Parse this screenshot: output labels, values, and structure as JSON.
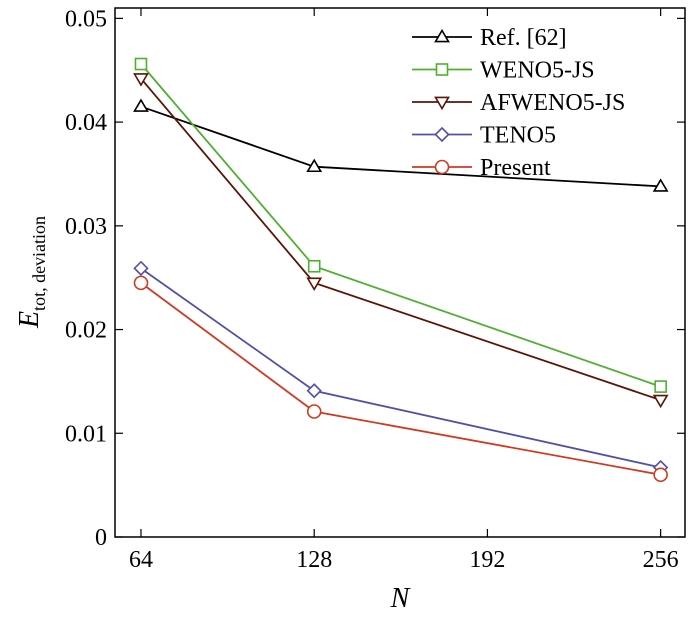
{
  "chart_data": {
    "type": "line",
    "xlabel": "N",
    "ylabel_main": "E",
    "ylabel_sub": "tot, deviation",
    "xlim": [
      54.4,
      265
    ],
    "ylim": [
      0,
      0.051
    ],
    "xticks": [
      64,
      128,
      192,
      256
    ],
    "xtick_labels": [
      "64",
      "128",
      "192",
      "256"
    ],
    "yticks": [
      0,
      0.01,
      0.02,
      0.03,
      0.04,
      0.05
    ],
    "ytick_labels": [
      "0",
      "0.01",
      "0.02",
      "0.03",
      "0.04",
      "0.05"
    ],
    "grid": false,
    "legend_position": "top-right",
    "x": [
      64,
      128,
      256
    ],
    "series": [
      {
        "name": "Ref. [62]",
        "color": "#000000",
        "marker": "triangle-up",
        "values": [
          0.0415,
          0.0357,
          0.0338
        ]
      },
      {
        "name": "WENO5-JS",
        "color": "#4fb030",
        "marker": "square",
        "values": [
          0.0456,
          0.0261,
          0.0145
        ]
      },
      {
        "name": "AFWENO5-JS",
        "color": "#5a1408",
        "marker": "triangle-down",
        "values": [
          0.0442,
          0.0245,
          0.0132
        ]
      },
      {
        "name": "TENO5",
        "color": "#5050a8",
        "marker": "diamond",
        "values": [
          0.0259,
          0.0141,
          0.0067
        ]
      },
      {
        "name": "Present",
        "color": "#d03a20",
        "marker": "circle",
        "values": [
          0.0245,
          0.0121,
          0.006
        ]
      }
    ]
  }
}
